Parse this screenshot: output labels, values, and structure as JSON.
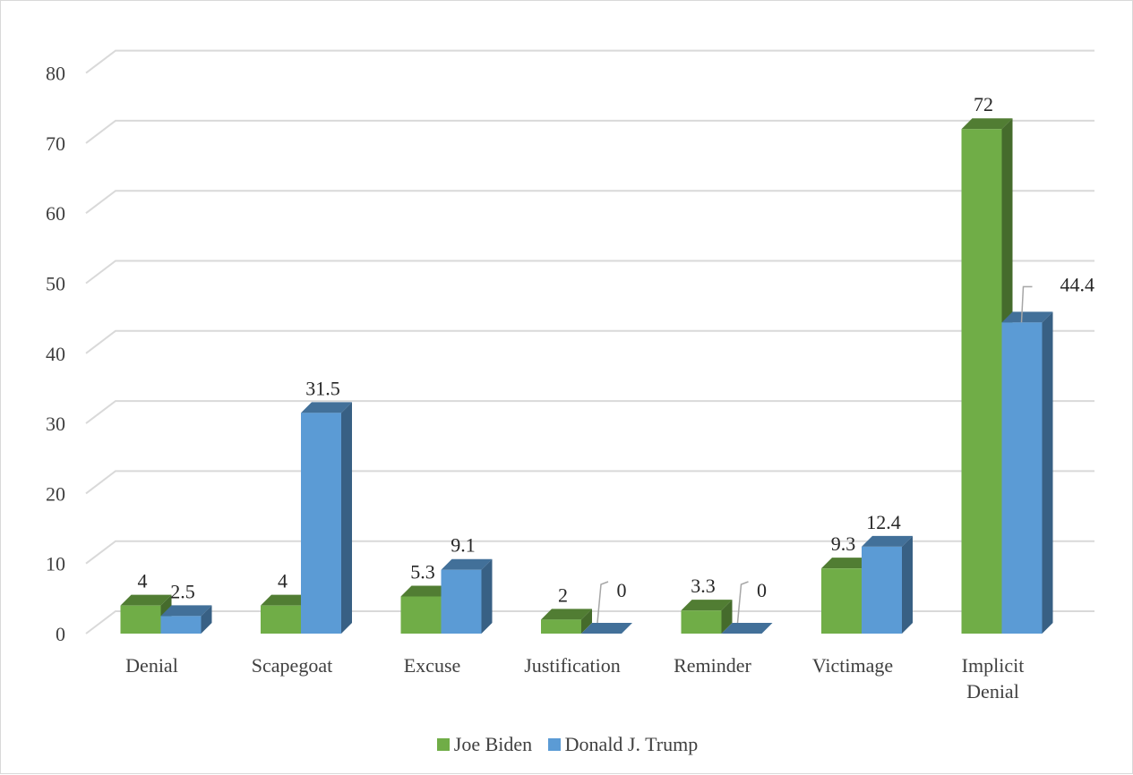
{
  "chart_data": {
    "type": "bar",
    "title": "",
    "xlabel": "",
    "ylabel": "",
    "ylim": [
      0,
      80
    ],
    "yticks": [
      "0",
      "10",
      "20",
      "30",
      "40",
      "50",
      "60",
      "70",
      "80"
    ],
    "grid": true,
    "legend_position": "bottom",
    "categories": [
      [
        "Denial"
      ],
      [
        "Scapegoat"
      ],
      [
        "Excuse"
      ],
      [
        "Justification"
      ],
      [
        "Reminder"
      ],
      [
        "Victimage"
      ],
      [
        "Implicit",
        "Denial"
      ]
    ],
    "series": [
      {
        "name": "Joe Biden",
        "color": "#70ad47",
        "values": [
          4,
          4,
          5.3,
          2,
          3.3,
          9.3,
          72
        ],
        "labels": [
          "4",
          "4",
          "5.3",
          "2",
          "3.3",
          "9.3",
          "72"
        ]
      },
      {
        "name": "Donald J. Trump",
        "color": "#5b9bd5",
        "values": [
          2.5,
          31.5,
          9.1,
          0,
          0,
          12.4,
          44.4
        ],
        "labels": [
          "2.5",
          "31.5",
          "9.1",
          "0",
          "0",
          "12.4",
          "44.4"
        ]
      }
    ]
  }
}
